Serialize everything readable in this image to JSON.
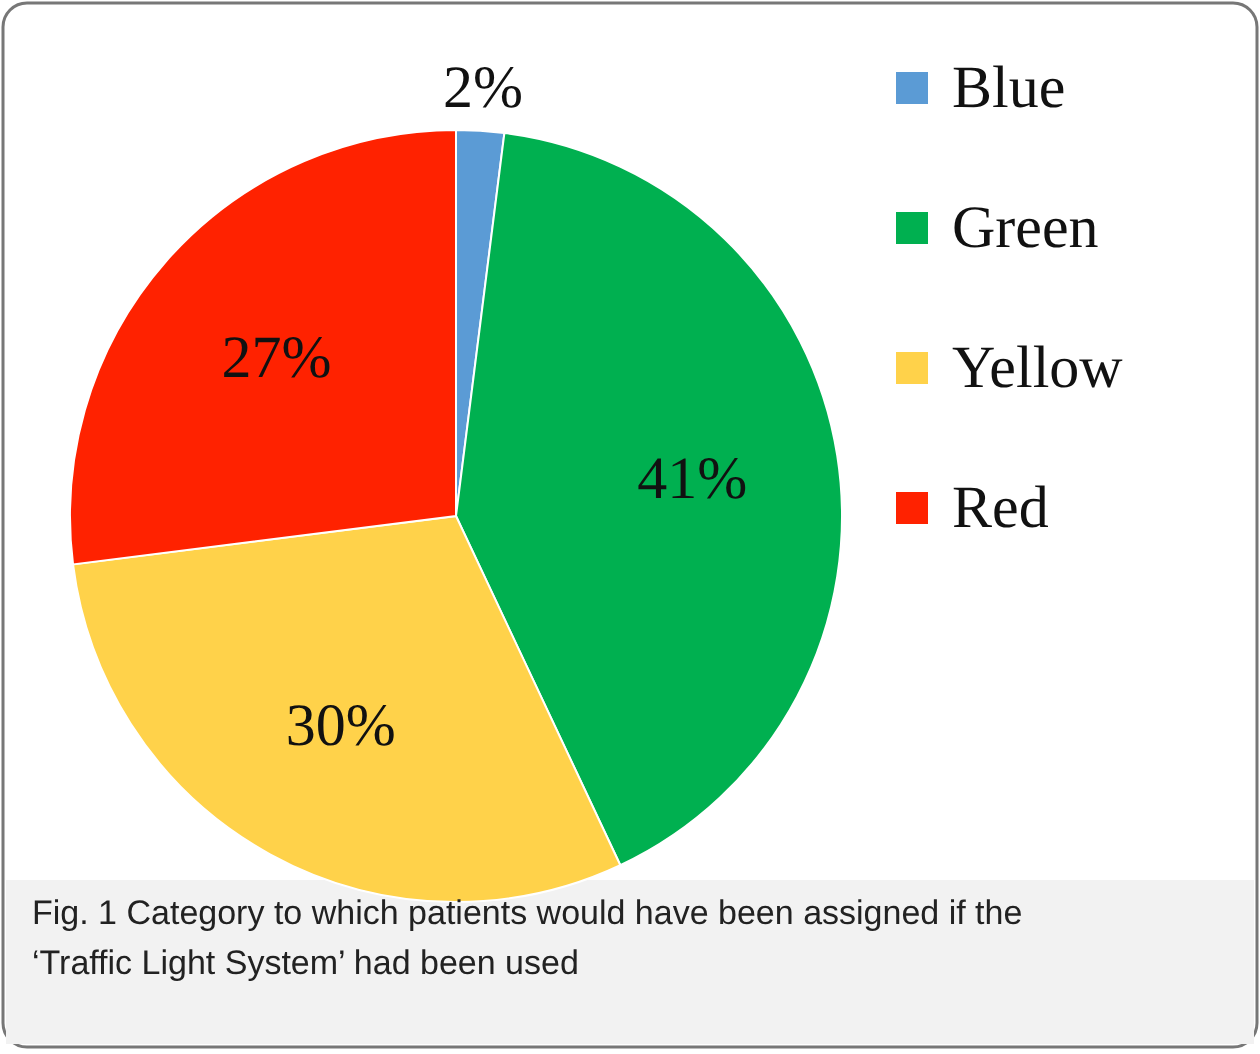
{
  "chart_data": {
    "type": "pie",
    "categories": [
      "Blue",
      "Green",
      "Yellow",
      "Red"
    ],
    "values": [
      2,
      41,
      30,
      27
    ],
    "colors": [
      "#5b9bd5",
      "#00b050",
      "#ffd24a",
      "#ff2200"
    ],
    "value_labels": [
      "2%",
      "41%",
      "30%",
      "27%"
    ],
    "legend": "top right",
    "annotations": [
      "Fig. 1 Category to which patients would have been assigned if the ‘Traffic Light System’ had been used"
    ]
  }
}
